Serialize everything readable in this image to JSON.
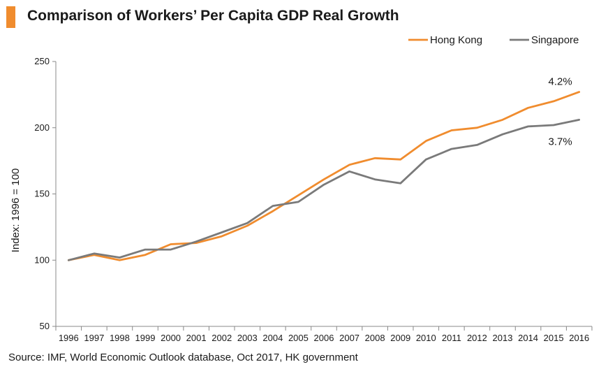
{
  "title": "Comparison of Workers’ Per Capita GDP Real Growth",
  "source": "Source: IMF, World Economic Outlook database, Oct 2017, HK government",
  "colors": {
    "accent": "#f08c2e",
    "hong_kong": "#f08c2e",
    "singapore": "#7a7a7a",
    "axis": "#888888"
  },
  "chart_data": {
    "type": "line",
    "title": "Comparison of Workers’ Per Capita GDP Real Growth",
    "xlabel": "",
    "ylabel": "Index: 1996 = 100",
    "ylim": [
      50,
      250
    ],
    "yticks": [
      50,
      100,
      150,
      200,
      250
    ],
    "grid": false,
    "legend_position": "top-right",
    "categories": [
      "1996",
      "1997",
      "1998",
      "1999",
      "2000",
      "2001",
      "2002",
      "2003",
      "2004",
      "2005",
      "2006",
      "2007",
      "2008",
      "2009",
      "2010",
      "2011",
      "2012",
      "2013",
      "2014",
      "2015",
      "2016"
    ],
    "series": [
      {
        "name": "Hong Kong",
        "color": "#f08c2e",
        "values": [
          100,
          104,
          100,
          104,
          112,
          113,
          118,
          126,
          137,
          149,
          161,
          172,
          177,
          176,
          190,
          198,
          200,
          206,
          215,
          220,
          227
        ]
      },
      {
        "name": "Singapore",
        "color": "#7a7a7a",
        "values": [
          100,
          105,
          102,
          108,
          108,
          114,
          121,
          128,
          141,
          144,
          157,
          167,
          161,
          158,
          176,
          184,
          187,
          195,
          201,
          202,
          206
        ]
      }
    ],
    "annotations": [
      {
        "text": "4.2%",
        "series": "Hong Kong"
      },
      {
        "text": "3.7%",
        "series": "Singapore"
      }
    ]
  }
}
